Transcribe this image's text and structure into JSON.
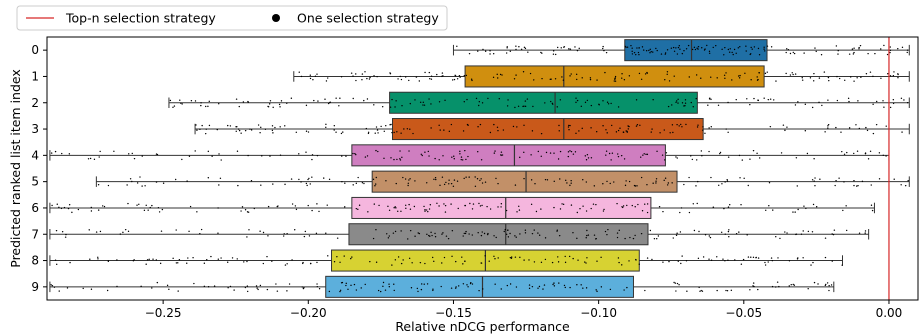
{
  "chart_data": {
    "type": "boxplot",
    "orientation": "horizontal",
    "xlabel": "Relative nDCG performance",
    "ylabel": "Predicted ranked list item index",
    "xlim": [
      -0.29,
      0.01
    ],
    "xticks": [
      -0.25,
      -0.2,
      -0.15,
      -0.1,
      -0.05,
      0.0
    ],
    "xtick_labels": [
      "−0.25",
      "−0.20",
      "−0.15",
      "−0.10",
      "−0.05",
      "0.00"
    ],
    "reference_line": {
      "x": 0.0,
      "color": "#d62728",
      "legend": "Top-n selection strategy"
    },
    "points_legend": "One selection strategy",
    "legend_location": "top-left (outside plot)",
    "grid": false,
    "categories": [
      "0",
      "1",
      "2",
      "3",
      "4",
      "5",
      "6",
      "7",
      "8",
      "9"
    ],
    "boxes": [
      {
        "label": "0",
        "whisker_low": -0.15,
        "q1": -0.091,
        "median": -0.068,
        "q3": -0.042,
        "whisker_high": 0.007,
        "color": "#1f6fa5"
      },
      {
        "label": "1",
        "whisker_low": -0.205,
        "q1": -0.146,
        "median": -0.112,
        "q3": -0.043,
        "whisker_high": 0.007,
        "color": "#d08f0f"
      },
      {
        "label": "2",
        "whisker_low": -0.248,
        "q1": -0.172,
        "median": -0.115,
        "q3": -0.066,
        "whisker_high": 0.007,
        "color": "#06916a"
      },
      {
        "label": "3",
        "whisker_low": -0.239,
        "q1": -0.171,
        "median": -0.112,
        "q3": -0.064,
        "whisker_high": 0.007,
        "color": "#c9591a"
      },
      {
        "label": "4",
        "whisker_low": -0.289,
        "q1": -0.185,
        "median": -0.129,
        "q3": -0.077,
        "whisker_high": 0.0,
        "color": "#cf7ec0"
      },
      {
        "label": "5",
        "whisker_low": -0.273,
        "q1": -0.178,
        "median": -0.125,
        "q3": -0.073,
        "whisker_high": 0.007,
        "color": "#c29068"
      },
      {
        "label": "6",
        "whisker_low": -0.289,
        "q1": -0.185,
        "median": -0.132,
        "q3": -0.082,
        "whisker_high": -0.005,
        "color": "#f5b6de"
      },
      {
        "label": "7",
        "whisker_low": -0.289,
        "q1": -0.186,
        "median": -0.132,
        "q3": -0.083,
        "whisker_high": -0.007,
        "color": "#8a8a8a"
      },
      {
        "label": "8",
        "whisker_low": -0.289,
        "q1": -0.192,
        "median": -0.139,
        "q3": -0.086,
        "whisker_high": -0.016,
        "color": "#d7d232"
      },
      {
        "label": "9",
        "whisker_low": -0.289,
        "q1": -0.194,
        "median": -0.14,
        "q3": -0.088,
        "whisker_high": -0.019,
        "color": "#5cafdc"
      }
    ]
  }
}
